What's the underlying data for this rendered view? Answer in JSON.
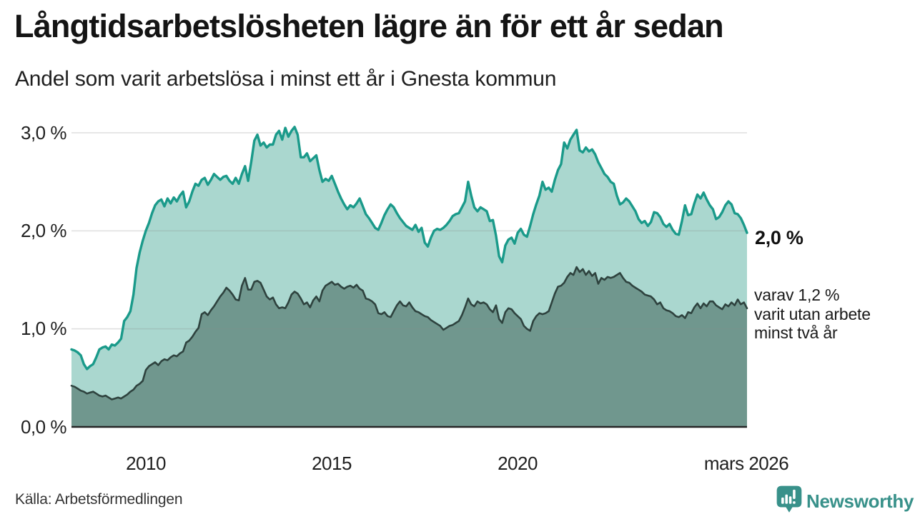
{
  "header": {
    "title": "Långtidsarbetslösheten lägre än för ett år sedan",
    "subtitle": "Andel som varit arbetslösa i minst ett år i Gnesta kommun"
  },
  "chart_data": {
    "type": "area",
    "title": "Långtidsarbetslösheten lägre än för ett år sedan",
    "subtitle": "Andel som varit arbetslösa i minst ett år i Gnesta kommun",
    "unit": "%",
    "x_monthly_start": "2008-01",
    "x_monthly_end": "2026-03",
    "x_tick_labels": [
      "2010",
      "2015",
      "2020",
      "mars 2026"
    ],
    "y_tick_labels": [
      "3,0 %",
      "2,0 %",
      "1,0 %",
      "0,0 %"
    ],
    "ylim": [
      0,
      3.0
    ],
    "grid": true,
    "grid_color": "rgba(140,140,140,0.28)",
    "baseline_color": "#262626",
    "legend_position": "none",
    "series": [
      {
        "name": "minst ett år",
        "color": "#1a9a8a",
        "fill": "#aad7cf",
        "latest_label": "2,0 %",
        "values": [
          0.79,
          0.78,
          0.76,
          0.73,
          0.64,
          0.59,
          0.62,
          0.64,
          0.71,
          0.79,
          0.81,
          0.82,
          0.79,
          0.84,
          0.83,
          0.86,
          0.9,
          1.08,
          1.12,
          1.18,
          1.35,
          1.62,
          1.78,
          1.9,
          2.0,
          2.08,
          2.18,
          2.26,
          2.3,
          2.32,
          2.25,
          2.33,
          2.28,
          2.34,
          2.3,
          2.36,
          2.4,
          2.24,
          2.3,
          2.4,
          2.48,
          2.46,
          2.52,
          2.54,
          2.47,
          2.52,
          2.58,
          2.55,
          2.52,
          2.55,
          2.56,
          2.51,
          2.48,
          2.54,
          2.48,
          2.58,
          2.66,
          2.51,
          2.7,
          2.92,
          2.98,
          2.87,
          2.9,
          2.85,
          2.88,
          2.88,
          2.98,
          3.02,
          2.93,
          3.05,
          2.96,
          3.02,
          3.06,
          2.98,
          2.75,
          2.75,
          2.79,
          2.71,
          2.74,
          2.77,
          2.62,
          2.5,
          2.53,
          2.51,
          2.56,
          2.48,
          2.4,
          2.33,
          2.27,
          2.22,
          2.26,
          2.24,
          2.28,
          2.33,
          2.25,
          2.17,
          2.13,
          2.08,
          2.03,
          2.01,
          2.08,
          2.16,
          2.22,
          2.27,
          2.24,
          2.18,
          2.13,
          2.09,
          2.05,
          2.03,
          2.01,
          2.06,
          1.99,
          2.03,
          1.88,
          1.84,
          1.93,
          2.0,
          2.02,
          2.01,
          2.03,
          2.06,
          2.1,
          2.15,
          2.17,
          2.18,
          2.24,
          2.3,
          2.5,
          2.36,
          2.24,
          2.2,
          2.24,
          2.22,
          2.2,
          2.1,
          2.11,
          1.95,
          1.74,
          1.68,
          1.85,
          1.91,
          1.93,
          1.87,
          1.98,
          2.02,
          1.96,
          1.94,
          2.05,
          2.17,
          2.27,
          2.36,
          2.5,
          2.42,
          2.44,
          2.4,
          2.52,
          2.62,
          2.68,
          2.9,
          2.84,
          2.93,
          2.98,
          3.03,
          2.82,
          2.8,
          2.85,
          2.81,
          2.83,
          2.78,
          2.7,
          2.64,
          2.58,
          2.55,
          2.5,
          2.48,
          2.36,
          2.27,
          2.29,
          2.33,
          2.3,
          2.25,
          2.2,
          2.12,
          2.08,
          2.1,
          2.05,
          2.09,
          2.19,
          2.18,
          2.14,
          2.07,
          2.04,
          2.07,
          2.01,
          1.97,
          1.96,
          2.1,
          2.26,
          2.16,
          2.17,
          2.28,
          2.37,
          2.33,
          2.39,
          2.32,
          2.26,
          2.22,
          2.12,
          2.14,
          2.19,
          2.26,
          2.3,
          2.27,
          2.18,
          2.17,
          2.13,
          2.06,
          1.98
        ]
      },
      {
        "name": "minst två år",
        "color": "#2e423e",
        "fill": "#70978e",
        "latest_label": "varav 1,2 % varit utan arbete minst två år",
        "values": [
          0.42,
          0.41,
          0.39,
          0.37,
          0.36,
          0.34,
          0.35,
          0.36,
          0.34,
          0.32,
          0.31,
          0.32,
          0.3,
          0.28,
          0.29,
          0.3,
          0.29,
          0.31,
          0.33,
          0.36,
          0.38,
          0.42,
          0.44,
          0.47,
          0.58,
          0.62,
          0.64,
          0.66,
          0.63,
          0.67,
          0.69,
          0.68,
          0.71,
          0.73,
          0.72,
          0.75,
          0.77,
          0.86,
          0.88,
          0.92,
          0.97,
          1.01,
          1.15,
          1.17,
          1.14,
          1.19,
          1.23,
          1.28,
          1.33,
          1.37,
          1.42,
          1.39,
          1.35,
          1.3,
          1.29,
          1.44,
          1.52,
          1.4,
          1.4,
          1.48,
          1.49,
          1.47,
          1.4,
          1.33,
          1.3,
          1.32,
          1.25,
          1.21,
          1.22,
          1.21,
          1.27,
          1.35,
          1.38,
          1.36,
          1.31,
          1.25,
          1.27,
          1.22,
          1.29,
          1.33,
          1.28,
          1.39,
          1.44,
          1.46,
          1.48,
          1.45,
          1.46,
          1.43,
          1.41,
          1.43,
          1.44,
          1.42,
          1.45,
          1.41,
          1.39,
          1.31,
          1.3,
          1.28,
          1.25,
          1.16,
          1.15,
          1.17,
          1.13,
          1.12,
          1.18,
          1.24,
          1.28,
          1.24,
          1.23,
          1.27,
          1.22,
          1.18,
          1.17,
          1.15,
          1.13,
          1.12,
          1.09,
          1.07,
          1.05,
          1.03,
          0.99,
          1.01,
          1.03,
          1.04,
          1.06,
          1.08,
          1.14,
          1.22,
          1.31,
          1.25,
          1.23,
          1.28,
          1.26,
          1.27,
          1.25,
          1.2,
          1.17,
          1.24,
          1.1,
          1.06,
          1.17,
          1.21,
          1.2,
          1.16,
          1.13,
          1.1,
          1.03,
          1.0,
          0.98,
          1.08,
          1.13,
          1.16,
          1.15,
          1.16,
          1.18,
          1.27,
          1.36,
          1.43,
          1.44,
          1.47,
          1.53,
          1.57,
          1.55,
          1.63,
          1.58,
          1.61,
          1.55,
          1.59,
          1.54,
          1.57,
          1.46,
          1.52,
          1.5,
          1.53,
          1.52,
          1.53,
          1.55,
          1.57,
          1.52,
          1.48,
          1.47,
          1.44,
          1.42,
          1.4,
          1.38,
          1.35,
          1.34,
          1.33,
          1.3,
          1.25,
          1.27,
          1.21,
          1.19,
          1.18,
          1.16,
          1.13,
          1.12,
          1.14,
          1.11,
          1.17,
          1.16,
          1.22,
          1.26,
          1.21,
          1.26,
          1.23,
          1.28,
          1.28,
          1.24,
          1.22,
          1.2,
          1.25,
          1.23,
          1.27,
          1.24,
          1.3,
          1.25,
          1.27,
          1.21
        ]
      }
    ],
    "annotations": [
      {
        "id": "latest-total",
        "text": "2,0 %"
      },
      {
        "id": "latest-two-years",
        "lines": [
          "varav 1,2 %",
          "varit utan arbete",
          "minst två år"
        ]
      }
    ]
  },
  "footer": {
    "source": "Källa: Arbetsförmedlingen",
    "brand": "Newsworthy",
    "brand_color": "#38918a"
  }
}
